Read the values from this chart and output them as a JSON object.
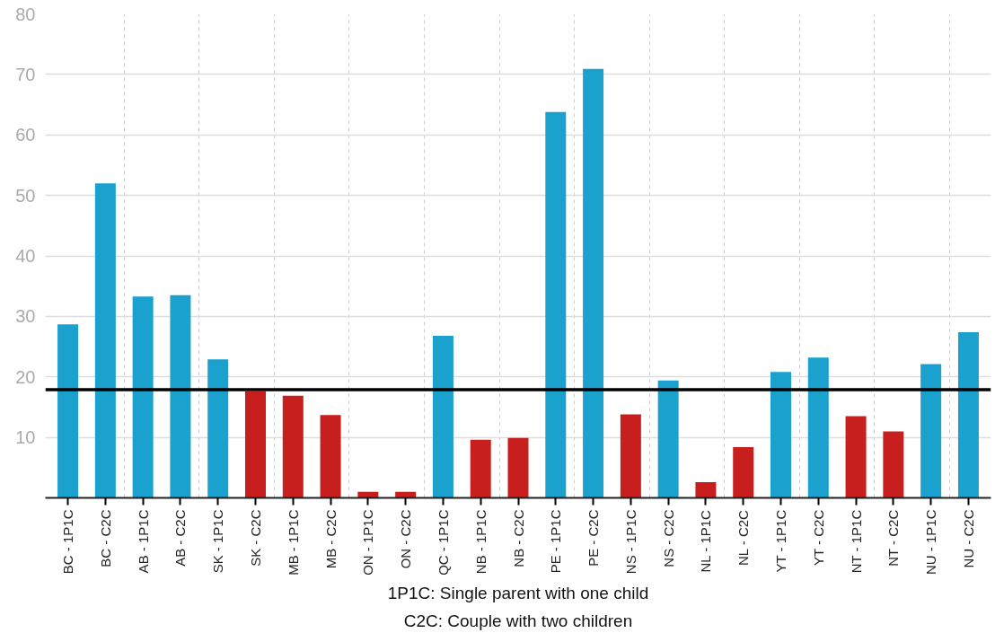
{
  "chart_data": {
    "type": "bar",
    "categories": [
      "BC - 1P1C",
      "BC - C2C",
      "AB - 1P1C",
      "AB - C2C",
      "SK - 1P1C",
      "SK - C2C",
      "MB - 1P1C",
      "MB - C2C",
      "ON - 1P1C",
      "ON - C2C",
      "QC - 1P1C",
      "NB - 1P1C",
      "NB - C2C",
      "PE - 1P1C",
      "PE - C2C",
      "NS - 1P1C",
      "NS - C2C",
      "NL - 1P1C",
      "NL - C2C",
      "YT - 1P1C",
      "YT - C2C",
      "NT - 1P1C",
      "NT - C2C",
      "NU - 1P1C",
      "NU - C2C"
    ],
    "values": [
      28.7,
      52.0,
      33.3,
      33.5,
      22.9,
      17.6,
      16.9,
      13.7,
      1.0,
      1.0,
      26.8,
      9.6,
      9.9,
      63.8,
      70.9,
      13.8,
      19.4,
      2.6,
      8.4,
      20.8,
      23.2,
      13.5,
      11.0,
      22.1,
      27.4
    ],
    "colors": [
      "#1aa1cd",
      "#1aa1cd",
      "#1aa1cd",
      "#1aa1cd",
      "#1aa1cd",
      "#c71e1e",
      "#c71e1e",
      "#c71e1e",
      "#c71e1e",
      "#c71e1e",
      "#1aa1cd",
      "#c71e1e",
      "#c71e1e",
      "#1aa1cd",
      "#1aa1cd",
      "#c71e1e",
      "#1aa1cd",
      "#c71e1e",
      "#c71e1e",
      "#1aa1cd",
      "#1aa1cd",
      "#c71e1e",
      "#c71e1e",
      "#1aa1cd",
      "#1aa1cd"
    ],
    "ylim": [
      0,
      80
    ],
    "yticks": [
      10,
      20,
      30,
      40,
      50,
      60,
      70,
      80
    ],
    "ref_lines": [
      {
        "axis": "y",
        "value": 17.9,
        "color": "#000000"
      }
    ],
    "grid": true,
    "annotations": [
      "1P1C: Single parent with one child",
      "C2C: Couple with two children"
    ]
  }
}
